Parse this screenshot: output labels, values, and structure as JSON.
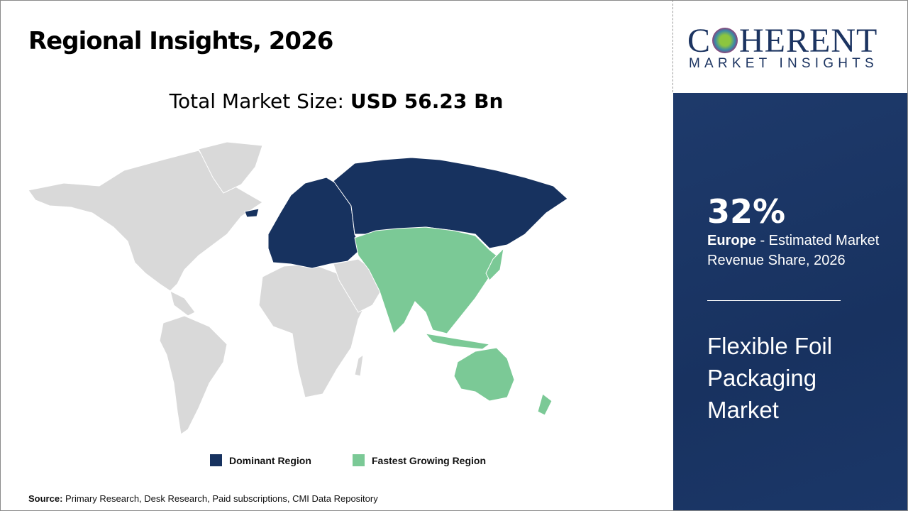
{
  "title": "Regional Insights, 2026",
  "total_market": {
    "label": "Total Market Size:",
    "value": "USD 56.23 Bn"
  },
  "logo": {
    "main": "COHERENT",
    "sub": "MARKET INSIGHTS"
  },
  "highlight": {
    "percent": "32%",
    "region": "Europe",
    "description": " - Estimated Market Revenue Share, 2026",
    "market_name": "Flexible Foil Packaging Market"
  },
  "legend": [
    {
      "label": "Dominant Region",
      "color": "#17325f"
    },
    {
      "label": "Fastest Growing Region",
      "color": "#7bc996"
    }
  ],
  "map": {
    "dominant": [
      "Europe",
      "Russia"
    ],
    "fastest_growing": [
      "Asia Pacific"
    ],
    "other_color": "#d9d9d9"
  },
  "source": {
    "label": "Source:",
    "text": " Primary Research, Desk Research, Paid subscriptions, CMI Data Repository"
  }
}
